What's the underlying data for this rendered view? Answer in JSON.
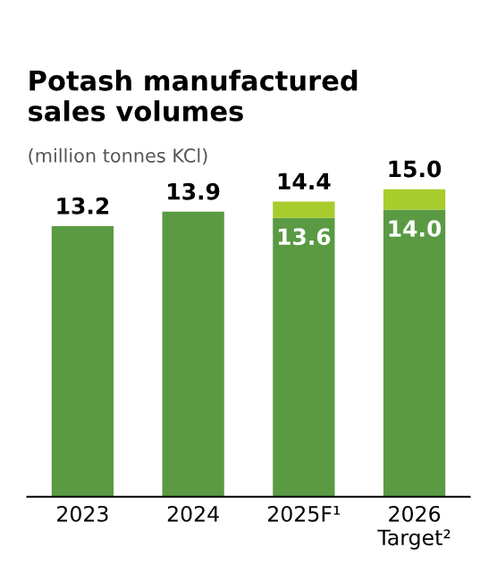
{
  "chart_data": {
    "type": "bar",
    "stacked": true,
    "title": "Potash manufactured\nsales volumes",
    "subtitle": "(million tonnes KCl)",
    "categories": [
      "2023",
      "2024",
      "2025F¹",
      "2026\nTarget²"
    ],
    "series": [
      {
        "color": "#5a9a43",
        "values": [
          13.2,
          13.9,
          13.6,
          14.0
        ],
        "value_labels": [
          "13.2",
          "13.9",
          "13.6",
          "14.0"
        ]
      },
      {
        "color": "#a8cc2c",
        "values": [
          null,
          null,
          0.8,
          1.0
        ]
      }
    ],
    "totals": [
      null,
      null,
      "14.4",
      "15.0"
    ],
    "grid": false,
    "legend": false
  }
}
